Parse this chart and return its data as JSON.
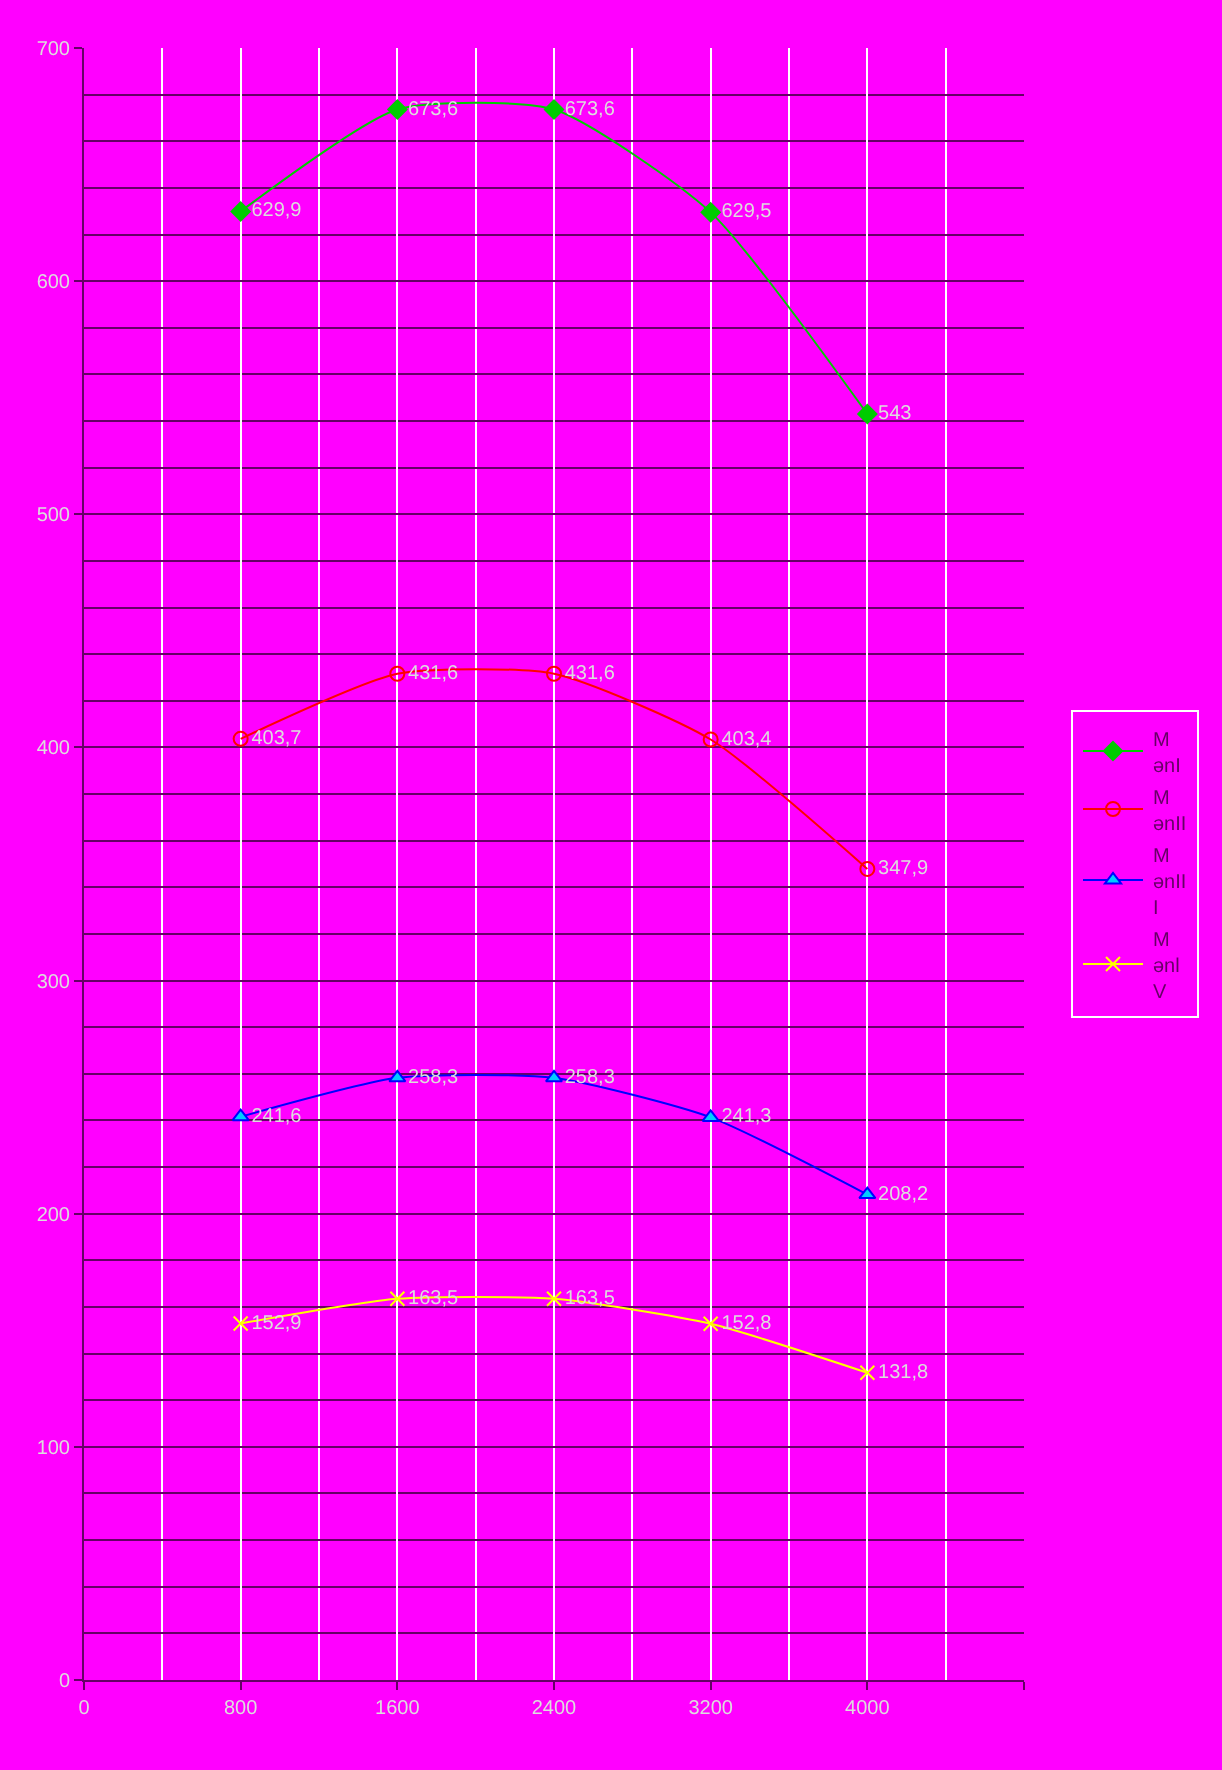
{
  "chart_data": {
    "type": "line",
    "x": [
      800,
      1600,
      2400,
      3200,
      4000
    ],
    "series": [
      {
        "name": "M ənI",
        "color": "#00cc00",
        "marker": "diamond",
        "values": [
          629.9,
          673.6,
          673.6,
          629.5,
          543
        ],
        "value_labels": [
          "629,9",
          "673,6",
          "673,6",
          "629,5",
          "543"
        ]
      },
      {
        "name": "M ənII",
        "color": "#ff0000",
        "marker": "circle",
        "values": [
          403.7,
          431.6,
          431.6,
          403.4,
          347.9
        ],
        "value_labels": [
          "403,7",
          "431,6",
          "431,6",
          "403,4",
          "347,9"
        ]
      },
      {
        "name": "M ənII I",
        "color": "#0000ff",
        "marker": "triangle",
        "values": [
          241.6,
          258.3,
          258.3,
          241.3,
          208.2
        ],
        "value_labels": [
          "241,6",
          "258,3",
          "258,3",
          "241,3",
          "208,2"
        ]
      },
      {
        "name": "M ənl V",
        "color": "#ffff00",
        "marker": "cross",
        "values": [
          152.9,
          163.5,
          163.5,
          152.8,
          131.8
        ],
        "value_labels": [
          "152,9",
          "163,5",
          "163,5",
          "152,8",
          "131,8"
        ]
      }
    ],
    "xlim": [
      0,
      4800
    ],
    "xticks": [
      0,
      800,
      1600,
      2400,
      3200,
      4000,
      {
        "value": 4800,
        "label": null
      }
    ],
    "ylim": [
      0,
      700
    ],
    "yticks": [
      0,
      100,
      200,
      300,
      400,
      500,
      600,
      700
    ],
    "grid": true,
    "legend": "right",
    "line_style": "solid"
  }
}
